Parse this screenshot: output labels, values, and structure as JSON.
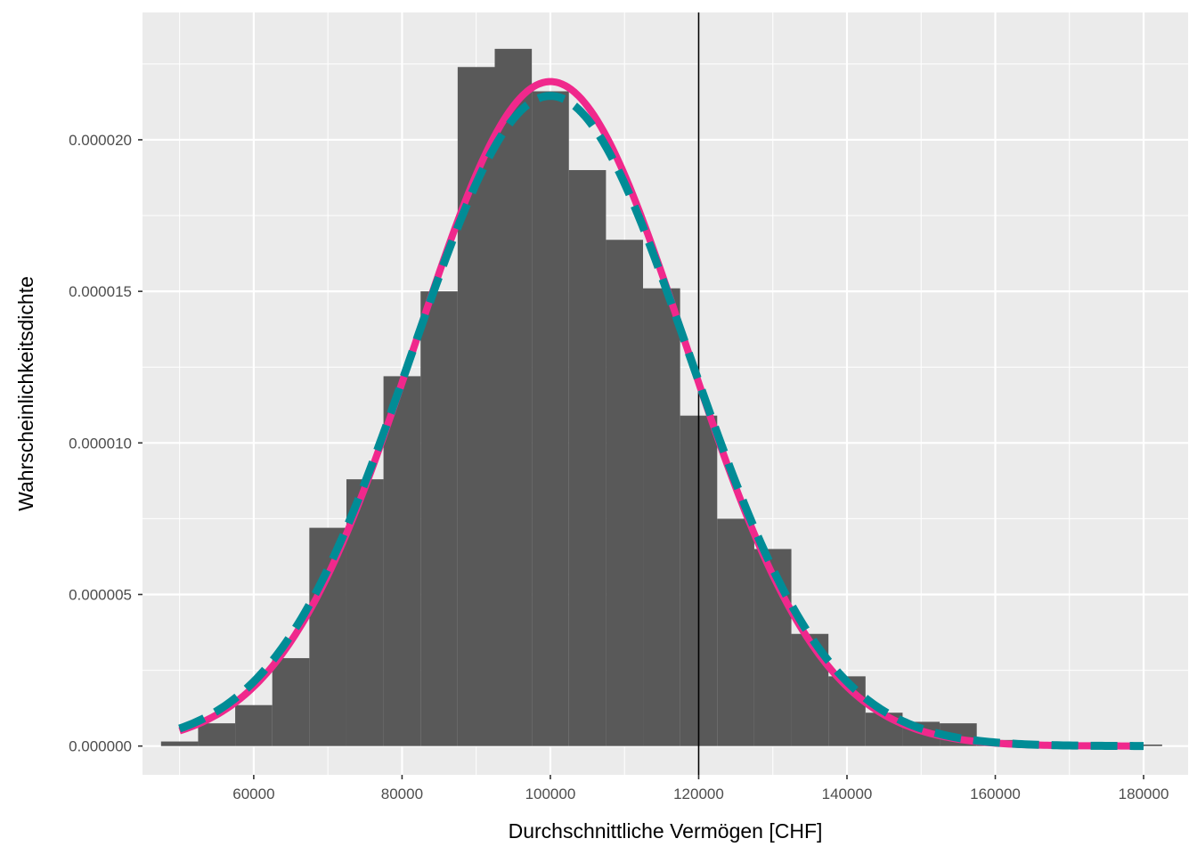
{
  "chart_data": {
    "type": "bar",
    "title": "",
    "xlabel": "Durchschnittliche Vermögen [CHF]",
    "ylabel": "Wahrscheinlichkeitsdichte",
    "xlim": [
      45000,
      186000
    ],
    "ylim": [
      -9.5e-07,
      2.42e-05
    ],
    "x_ticks": [
      60000,
      80000,
      100000,
      120000,
      140000,
      160000,
      180000
    ],
    "x_tick_labels": [
      "60000",
      "80000",
      "100000",
      "120000",
      "140000",
      "160000",
      "180000"
    ],
    "y_ticks": [
      0,
      5e-06,
      1e-05,
      1.5e-05,
      2e-05
    ],
    "y_tick_labels": [
      "0.000000",
      "0.000005",
      "0.000010",
      "0.000015",
      "0.000020"
    ],
    "grid": true,
    "bin_width": 5000,
    "bins": [
      {
        "x0": 47500,
        "x1": 52500,
        "density": 1.5e-07
      },
      {
        "x0": 52500,
        "x1": 57500,
        "density": 7.5e-07
      },
      {
        "x0": 57500,
        "x1": 62500,
        "density": 1.35e-06
      },
      {
        "x0": 62500,
        "x1": 67500,
        "density": 2.9e-06
      },
      {
        "x0": 67500,
        "x1": 72500,
        "density": 7.2e-06
      },
      {
        "x0": 72500,
        "x1": 77500,
        "density": 8.8e-06
      },
      {
        "x0": 77500,
        "x1": 82500,
        "density": 1.22e-05
      },
      {
        "x0": 82500,
        "x1": 87500,
        "density": 1.5e-05
      },
      {
        "x0": 87500,
        "x1": 92500,
        "density": 2.24e-05
      },
      {
        "x0": 92500,
        "x1": 97500,
        "density": 2.3e-05
      },
      {
        "x0": 97500,
        "x1": 102500,
        "density": 2.16e-05
      },
      {
        "x0": 102500,
        "x1": 107500,
        "density": 1.9e-05
      },
      {
        "x0": 107500,
        "x1": 112500,
        "density": 1.67e-05
      },
      {
        "x0": 112500,
        "x1": 117500,
        "density": 1.51e-05
      },
      {
        "x0": 117500,
        "x1": 122500,
        "density": 1.09e-05
      },
      {
        "x0": 122500,
        "x1": 127500,
        "density": 7.5e-06
      },
      {
        "x0": 127500,
        "x1": 132500,
        "density": 6.5e-06
      },
      {
        "x0": 132500,
        "x1": 137500,
        "density": 3.7e-06
      },
      {
        "x0": 137500,
        "x1": 142500,
        "density": 2.3e-06
      },
      {
        "x0": 142500,
        "x1": 147500,
        "density": 1.1e-06
      },
      {
        "x0": 147500,
        "x1": 152500,
        "density": 8e-07
      },
      {
        "x0": 152500,
        "x1": 157500,
        "density": 7.5e-07
      },
      {
        "x0": 157500,
        "x1": 162500,
        "density": 2e-07
      },
      {
        "x0": 162500,
        "x1": 167500,
        "density": 5e-08
      },
      {
        "x0": 167500,
        "x1": 172500,
        "density": 5e-08
      },
      {
        "x0": 172500,
        "x1": 177500,
        "density": 5e-08
      },
      {
        "x0": 177500,
        "x1": 182500,
        "density": 5e-08
      }
    ],
    "vline": {
      "x": 120000,
      "color": "#000000"
    },
    "curves": [
      {
        "kind": "normal-density",
        "mean": 100000,
        "sd": 18200,
        "x_range": [
          50000,
          180000
        ],
        "color": "#f0288c",
        "linestyle": "solid"
      },
      {
        "kind": "normal-density",
        "mean": 100000,
        "sd": 18600,
        "x_range": [
          50000,
          180000
        ],
        "color": "#008c96",
        "linestyle": "dashed"
      }
    ],
    "colors": {
      "panel_background": "#ebebeb",
      "grid": "#ffffff",
      "bar_fill": "#595959",
      "tick_label": "#4d4d4d",
      "axis_title": "#000000"
    }
  }
}
